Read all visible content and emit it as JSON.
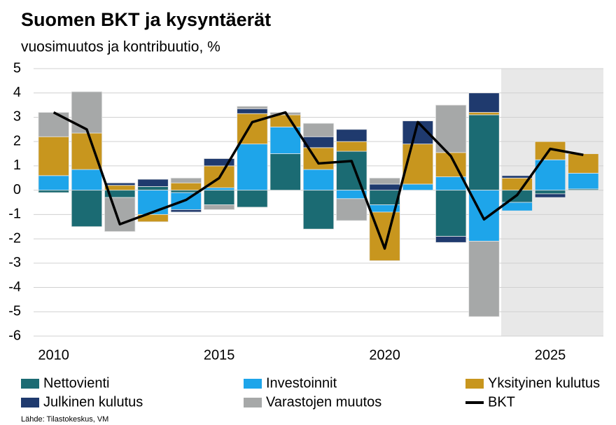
{
  "chart_data": {
    "type": "bar",
    "stacked": true,
    "title": "Suomen BKT ja kysyntäerät",
    "subtitle": "vuosimuutos ja kontribuutio, %",
    "source": "Lähde: Tilastokeskus, VM",
    "categories": [
      "2010",
      null,
      null,
      null,
      null,
      "2015",
      null,
      null,
      null,
      null,
      "2020",
      null,
      null,
      null,
      null,
      "2025",
      null
    ],
    "series": [
      {
        "name": "Nettovienti",
        "color": "#1b6b73",
        "values": [
          -0.1,
          -1.5,
          -0.3,
          0.15,
          -0.1,
          -0.6,
          -0.7,
          1.5,
          -1.6,
          1.6,
          -0.6,
          0,
          -1.9,
          3.1,
          -0.5,
          -0.15,
          0.05
        ]
      },
      {
        "name": "Investoinnit",
        "color": "#1ea5ea",
        "values": [
          0.6,
          0.85,
          0,
          -1.0,
          -0.7,
          0.1,
          1.9,
          1.1,
          0.85,
          -0.35,
          -0.3,
          0.25,
          0.55,
          -2.1,
          -0.35,
          1.25,
          0.65
        ]
      },
      {
        "name": "Yksityinen kulutus",
        "color": "#c8961e",
        "values": [
          1.6,
          1.5,
          0.2,
          -0.3,
          0.3,
          0.9,
          1.25,
          0.5,
          0.9,
          0.4,
          -2.0,
          1.65,
          1.0,
          0.1,
          0.5,
          0.75,
          0.8
        ]
      },
      {
        "name": "Julkinen kulutus",
        "color": "#1f3a6e",
        "values": [
          0,
          0,
          0.1,
          0.3,
          -0.1,
          0.3,
          0.2,
          0,
          0.45,
          0.5,
          0.25,
          0.95,
          -0.25,
          0.8,
          0.1,
          -0.15,
          0
        ]
      },
      {
        "name": "Varastojen muutos",
        "color": "#a6a8a8",
        "values": [
          1.0,
          1.7,
          -1.4,
          0,
          0.2,
          -0.2,
          0.1,
          0.1,
          0.55,
          -0.9,
          0.25,
          0,
          1.95,
          -3.1,
          0,
          0,
          0
        ]
      }
    ],
    "line": {
      "name": "BKT",
      "color": "#000000",
      "values": [
        3.2,
        2.5,
        -1.4,
        -0.9,
        -0.4,
        0.5,
        2.8,
        3.2,
        1.1,
        1.2,
        -2.4,
        2.8,
        1.4,
        -1.2,
        -0.2,
        1.7,
        1.45
      ]
    },
    "ylim": [
      -6,
      5
    ],
    "yticks": [
      -6,
      -5,
      -4,
      -3,
      -2,
      -1,
      0,
      1,
      2,
      3,
      4,
      5
    ],
    "grid": true
  }
}
